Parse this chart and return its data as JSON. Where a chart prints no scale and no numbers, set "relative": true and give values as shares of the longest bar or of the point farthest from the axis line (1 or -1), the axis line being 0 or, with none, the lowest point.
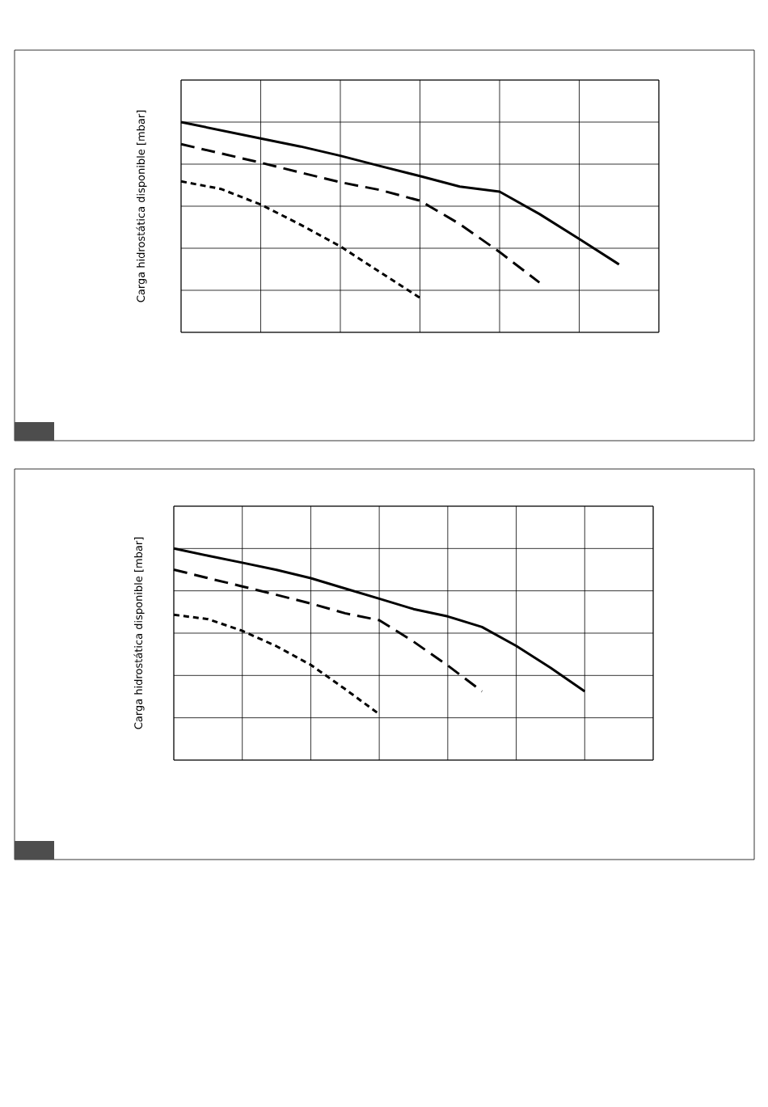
{
  "chart_data": [
    {
      "type": "line",
      "ylabel": "Carga hidrostática disponible [mbar]",
      "relative": true,
      "grid": true,
      "categories": [
        null,
        null,
        null,
        null,
        null,
        null,
        null,
        null,
        null,
        null,
        null,
        null,
        null
      ],
      "series": [
        {
          "color": "#000000",
          "line_style": "solid",
          "values": [
            1,
            0.961,
            0.922,
            0.884,
            0.84,
            0.791,
            0.743,
            0.693,
            0.669,
            0.563,
            0.444,
            0.323,
            null
          ]
        },
        {
          "color": "#000000",
          "line_style": "dashed",
          "values": [
            0.895,
            0.851,
            0.807,
            0.76,
            0.714,
            0.677,
            0.626,
            0.515,
            0.382,
            0.237,
            null,
            null,
            null
          ]
        },
        {
          "color": "#000000",
          "line_style": "dotted",
          "values": [
            0.718,
            0.682,
            0.608,
            0.512,
            0.409,
            0.286,
            0.164,
            null,
            null,
            null,
            null,
            null,
            null
          ]
        }
      ]
    },
    {
      "type": "line",
      "ylabel": "Carga hidrostática disponible [mbar]",
      "relative": true,
      "grid": true,
      "categories": [
        null,
        null,
        null,
        null,
        null,
        null,
        null,
        null,
        null,
        null,
        null,
        null,
        null,
        null,
        null
      ],
      "series": [
        {
          "color": "#000000",
          "line_style": "solid",
          "values": [
            1,
            0.966,
            0.933,
            0.899,
            0.86,
            0.811,
            0.763,
            0.714,
            0.679,
            0.629,
            0.54,
            0.437,
            0.325,
            null,
            null
          ]
        },
        {
          "color": "#000000",
          "line_style": "dashed",
          "values": [
            0.9,
            0.86,
            0.821,
            0.781,
            0.74,
            0.694,
            0.661,
            0.56,
            0.447,
            0.325,
            null,
            null,
            null,
            null,
            null
          ]
        },
        {
          "color": "#000000",
          "line_style": "dotted",
          "values": [
            0.687,
            0.666,
            0.611,
            0.538,
            0.45,
            0.336,
            0.217,
            null,
            null,
            null,
            null,
            null,
            null,
            null,
            null
          ]
        }
      ]
    }
  ]
}
